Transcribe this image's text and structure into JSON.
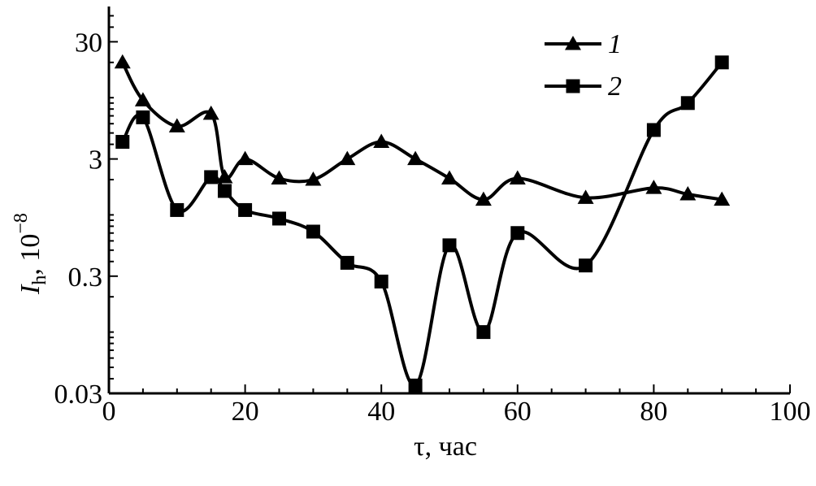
{
  "chart_data": {
    "type": "line",
    "xlabel": "τ, час",
    "ylabel": {
      "symbol": "I",
      "subscript": "h",
      "separator": ", ",
      "base": "10",
      "exponent": "−8"
    },
    "xlim": [
      0,
      100
    ],
    "ylim": [
      0.03,
      60
    ],
    "yscale": "log",
    "xticks": [
      0,
      20,
      40,
      60,
      80,
      100
    ],
    "xtick_labels": [
      "0",
      "20",
      "40",
      "60",
      "80",
      "100"
    ],
    "yticks": [
      0.03,
      0.3,
      3,
      30
    ],
    "ytick_labels": [
      "0.03",
      "0.3",
      "3",
      "30"
    ],
    "grid": false,
    "legend_position": "top-right",
    "series": [
      {
        "name": "1",
        "marker": "triangle",
        "x": [
          2,
          5,
          10,
          15,
          17,
          20,
          25,
          30,
          35,
          40,
          45,
          50,
          55,
          60,
          70,
          80,
          85,
          90
        ],
        "y": [
          20,
          9.5,
          5.7,
          7.3,
          2.1,
          3.0,
          2.05,
          2.0,
          3.0,
          4.2,
          3.0,
          2.05,
          1.35,
          2.05,
          1.4,
          1.7,
          1.5,
          1.35
        ]
      },
      {
        "name": "2",
        "marker": "square",
        "x": [
          2,
          5,
          10,
          15,
          17,
          20,
          25,
          30,
          35,
          40,
          45,
          50,
          55,
          60,
          70,
          80,
          85,
          90
        ],
        "y": [
          4.2,
          6.8,
          1.1,
          2.1,
          1.6,
          1.1,
          0.93,
          0.72,
          0.39,
          0.27,
          0.035,
          0.55,
          0.1,
          0.7,
          0.37,
          5.3,
          9.0,
          20
        ]
      }
    ]
  }
}
